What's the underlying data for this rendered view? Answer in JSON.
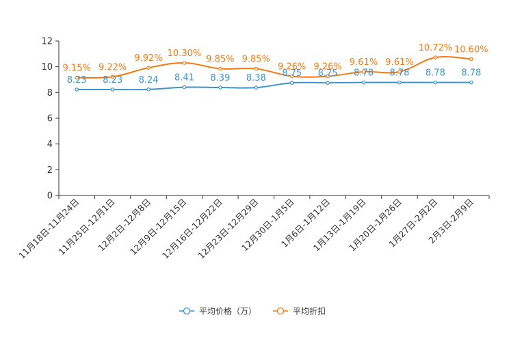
{
  "chart_data": {
    "type": "line",
    "title": "",
    "xlabel": "",
    "ylabel": "",
    "ylim": [
      0,
      12
    ],
    "yticks": [
      0,
      2,
      4,
      6,
      8,
      10,
      12
    ],
    "grid": false,
    "legend_position": "bottom",
    "categories": [
      "11月18日-11月24日",
      "11月25日-12月1日",
      "12月2日-12月8日",
      "12月9日-12月15日",
      "12月16日-12月22日",
      "12月23日-12月29日",
      "12月30日-1月5日",
      "1月6日-1月12日",
      "1月13日-1月19日",
      "1月20日-1月26日",
      "1月27日-2月2日",
      "2月3日-2月9日"
    ],
    "series": [
      {
        "name": "平均价格（万）",
        "color": "#3d93c9",
        "values": [
          8.23,
          8.23,
          8.24,
          8.41,
          8.39,
          8.38,
          8.75,
          8.75,
          8.78,
          8.78,
          8.78,
          8.78
        ],
        "labels": [
          "8.23",
          "8.23",
          "8.24",
          "8.41",
          "8.39",
          "8.38",
          "8.75",
          "8.75",
          "8.78",
          "8.78",
          "8.78",
          "8.78"
        ]
      },
      {
        "name": "平均折扣",
        "color": "#f5780e",
        "values": [
          9.15,
          9.22,
          9.92,
          10.3,
          9.85,
          9.85,
          9.26,
          9.26,
          9.61,
          9.61,
          10.72,
          10.6
        ],
        "labels": [
          "9.15%",
          "9.22%",
          "9.92%",
          "10.30%",
          "9.85%",
          "9.85%",
          "9.26%",
          "9.26%",
          "9.61%",
          "9.61%",
          "10.72%",
          "10.60%"
        ]
      }
    ]
  }
}
